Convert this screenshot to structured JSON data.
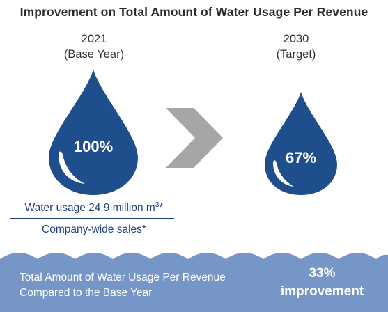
{
  "title": "Improvement on Total Amount of Water Usage Per Revenue",
  "base": {
    "year": "2021",
    "label": "(Base Year)",
    "percent": "100%"
  },
  "target": {
    "year": "2030",
    "label": "(Target)",
    "percent": "67%"
  },
  "formula": {
    "numerator": "Water usage 24.9 million m",
    "numerator_sup": "3",
    "numerator_suffix": "*",
    "denominator": "Company-wide sales*"
  },
  "summary": {
    "line1": "Total Amount of Water Usage Per Revenue",
    "line2": "Compared to the Base Year",
    "value": "33%",
    "value_label": "improvement"
  },
  "colors": {
    "drop": "#1f4e8c",
    "arrow": "#a6a6a6",
    "wave": "#7596c6",
    "text_blue": "#1f3f7f"
  },
  "icons": {
    "base_drop": "water-drop-icon",
    "target_drop": "water-drop-icon",
    "arrow": "chevron-right-icon"
  }
}
